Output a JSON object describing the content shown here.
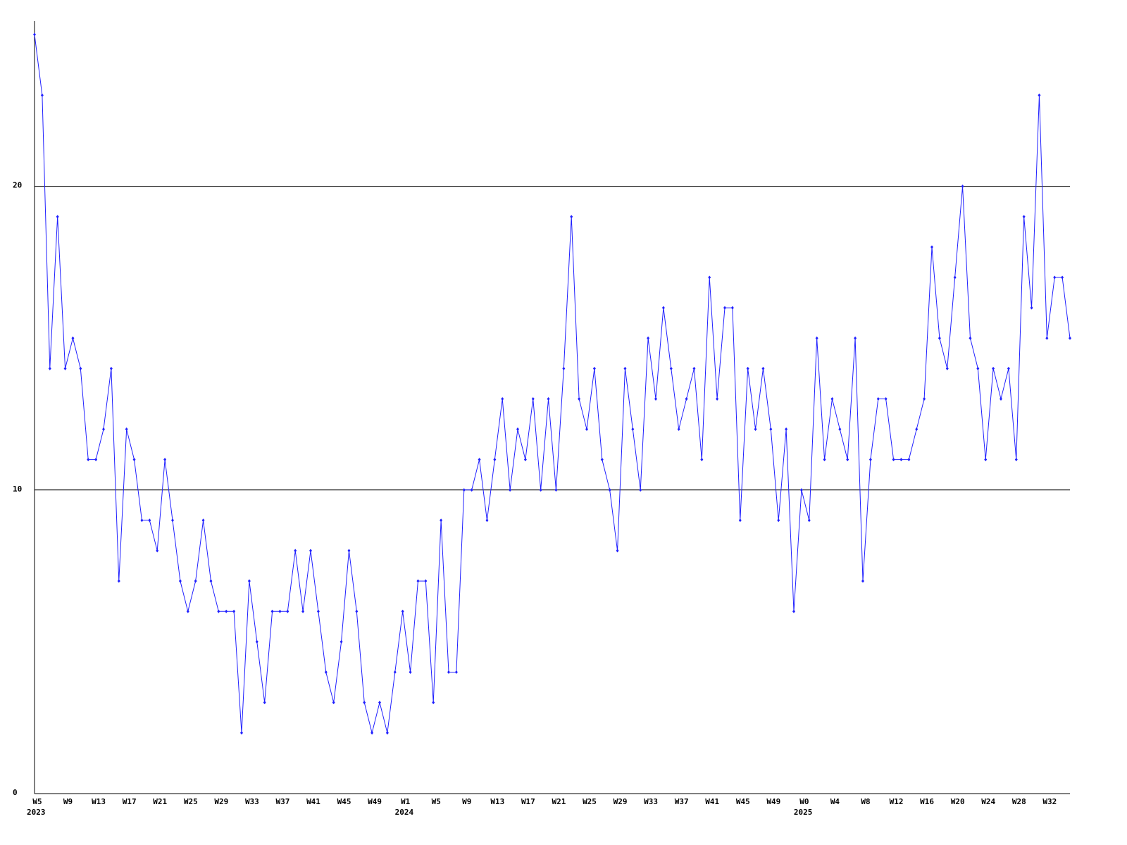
{
  "chart_data": {
    "type": "line",
    "categories": [
      "W5",
      null,
      null,
      null,
      "W9",
      null,
      null,
      null,
      "W13",
      null,
      null,
      null,
      "W17",
      null,
      null,
      null,
      "W21",
      null,
      null,
      null,
      "W25",
      null,
      null,
      null,
      "W29",
      null,
      null,
      null,
      "W33",
      null,
      null,
      null,
      "W37",
      null,
      null,
      null,
      "W41",
      null,
      null,
      null,
      "W45",
      null,
      null,
      null,
      "W49",
      null,
      null,
      null,
      "W1",
      null,
      null,
      null,
      "W5",
      null,
      null,
      null,
      "W9",
      null,
      null,
      null,
      "W13",
      null,
      null,
      null,
      "W17",
      null,
      null,
      null,
      "W21",
      null,
      null,
      null,
      "W25",
      null,
      null,
      null,
      "W29",
      null,
      null,
      null,
      "W33",
      null,
      null,
      null,
      "W37",
      null,
      null,
      null,
      "W41",
      null,
      null,
      null,
      "W45",
      null,
      null,
      null,
      "W49",
      null,
      null,
      null,
      "W0",
      null,
      null,
      null,
      "W4",
      null,
      null,
      null,
      "W8",
      null,
      null,
      null,
      "W12",
      null,
      null,
      null,
      "W16",
      null,
      null,
      null,
      "W20",
      null,
      null,
      null,
      "W24",
      null,
      null,
      null,
      "W28",
      null,
      null,
      null,
      "W32",
      null,
      null,
      null
    ],
    "year_labels": [
      "2023",
      null,
      null,
      null,
      null,
      null,
      null,
      null,
      null,
      null,
      null,
      null,
      null,
      null,
      null,
      null,
      null,
      null,
      null,
      null,
      null,
      null,
      null,
      null,
      null,
      null,
      null,
      null,
      null,
      null,
      null,
      null,
      null,
      null,
      null,
      null,
      null,
      null,
      null,
      null,
      null,
      null,
      null,
      null,
      null,
      null,
      null,
      null,
      "2024",
      null,
      null,
      null,
      null,
      null,
      null,
      null,
      null,
      null,
      null,
      null,
      null,
      null,
      null,
      null,
      null,
      null,
      null,
      null,
      null,
      null,
      null,
      null,
      null,
      null,
      null,
      null,
      null,
      null,
      null,
      null,
      null,
      null,
      null,
      null,
      null,
      null,
      null,
      null,
      null,
      null,
      null,
      null,
      null,
      null,
      null,
      null,
      null,
      null,
      null,
      null,
      "2025",
      null,
      null,
      null,
      null,
      null,
      null,
      null,
      null,
      null,
      null,
      null,
      null,
      null,
      null,
      null,
      null,
      null,
      null,
      null,
      null,
      null,
      null,
      null,
      null,
      null,
      null,
      null,
      null,
      null,
      null,
      null,
      null,
      null,
      null,
      null
    ],
    "series": [
      {
        "color": "#2020ff",
        "values": [
          25,
          23,
          14,
          19,
          14,
          15,
          14,
          11,
          11,
          12,
          14,
          7,
          12,
          11,
          9,
          9,
          8,
          11,
          9,
          7,
          6,
          7,
          9,
          7,
          6,
          6,
          6,
          2,
          7,
          5,
          3,
          6,
          6,
          6,
          8,
          6,
          8,
          6,
          4,
          3,
          5,
          8,
          6,
          3,
          2,
          3,
          2,
          4,
          6,
          4,
          7,
          7,
          3,
          9,
          4,
          4,
          10,
          10,
          11,
          9,
          11,
          13,
          10,
          12,
          11,
          13,
          10,
          13,
          10,
          14,
          19,
          13,
          12,
          14,
          11,
          10,
          8,
          14,
          12,
          10,
          15,
          13,
          16,
          14,
          12,
          13,
          14,
          11,
          17,
          13,
          16,
          16,
          9,
          14,
          12,
          14,
          12,
          9,
          12,
          6,
          10,
          9,
          15,
          11,
          13,
          12,
          11,
          15,
          7,
          11,
          13,
          13,
          11,
          11,
          11,
          12,
          13,
          18,
          15,
          14,
          17,
          20,
          15,
          14,
          11,
          14,
          13,
          14,
          11,
          19,
          16,
          23,
          15,
          17,
          17,
          15
        ]
      }
    ],
    "ylim": [
      0,
      25
    ],
    "yticks": [
      0,
      10,
      20
    ],
    "grid": true
  }
}
